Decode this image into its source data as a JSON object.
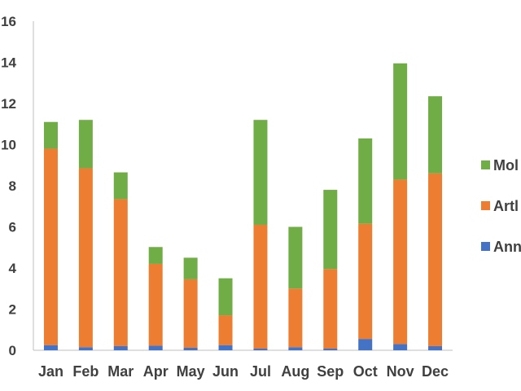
{
  "chart_data": {
    "type": "bar",
    "stacked": true,
    "categories": [
      "Jan",
      "Feb",
      "Mar",
      "Apr",
      "May",
      "Jun",
      "Jul",
      "Aug",
      "Sep",
      "Oct",
      "Nov",
      "Dec"
    ],
    "series": [
      {
        "name": "Annelida",
        "color": "#4472c4",
        "values": [
          0.25,
          0.15,
          0.2,
          0.22,
          0.12,
          0.25,
          0.08,
          0.15,
          0.08,
          0.55,
          0.3,
          0.2
        ]
      },
      {
        "name": "Arthropoda",
        "color": "#ed7d31",
        "values": [
          9.55,
          8.7,
          7.15,
          3.98,
          3.33,
          1.45,
          6.02,
          2.85,
          3.87,
          5.6,
          8.0,
          8.4
        ]
      },
      {
        "name": "Mollusca",
        "color": "#70ad47",
        "values": [
          1.3,
          2.35,
          1.3,
          0.82,
          1.05,
          1.8,
          5.1,
          3.0,
          3.85,
          4.15,
          5.65,
          3.75
        ]
      }
    ],
    "ylim": [
      0,
      16
    ],
    "yticks": [
      "0",
      "2",
      "4",
      "6",
      "8",
      "10",
      "12",
      "14",
      "16"
    ],
    "grid": false,
    "legend_position": "right",
    "legend_visible_labels": [
      "Mol",
      "Artl",
      "Ann"
    ]
  }
}
